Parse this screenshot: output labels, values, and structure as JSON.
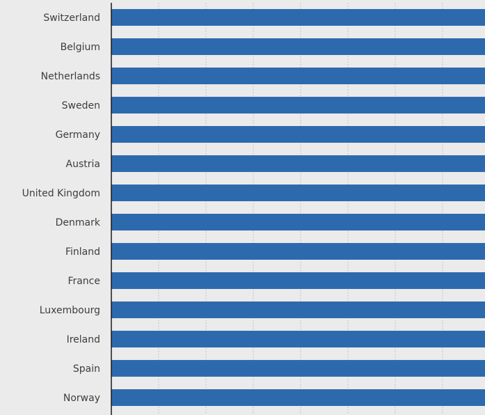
{
  "chart_data": {
    "type": "bar",
    "orientation": "horizontal",
    "categories": [
      "Switzerland",
      "Belgium",
      "Netherlands",
      "Sweden",
      "Germany",
      "Austria",
      "United Kingdom",
      "Denmark",
      "Finland",
      "France",
      "Luxembourg",
      "Ireland",
      "Spain",
      "Norway"
    ],
    "series": [
      {
        "values": [
          100,
          100,
          100,
          100,
          100,
          100,
          100,
          100,
          100,
          100,
          100,
          100,
          100,
          100
        ]
      }
    ],
    "xlim": [
      0,
      100
    ],
    "grid": true,
    "grid_style": "dotted vertical",
    "legend": "none",
    "colors": {
      "bar": "#2d6aad",
      "background": "#ebebeb",
      "axis": "#1a1a1a",
      "grid": "#b8b8b8",
      "label": "#3d3d3d"
    }
  }
}
